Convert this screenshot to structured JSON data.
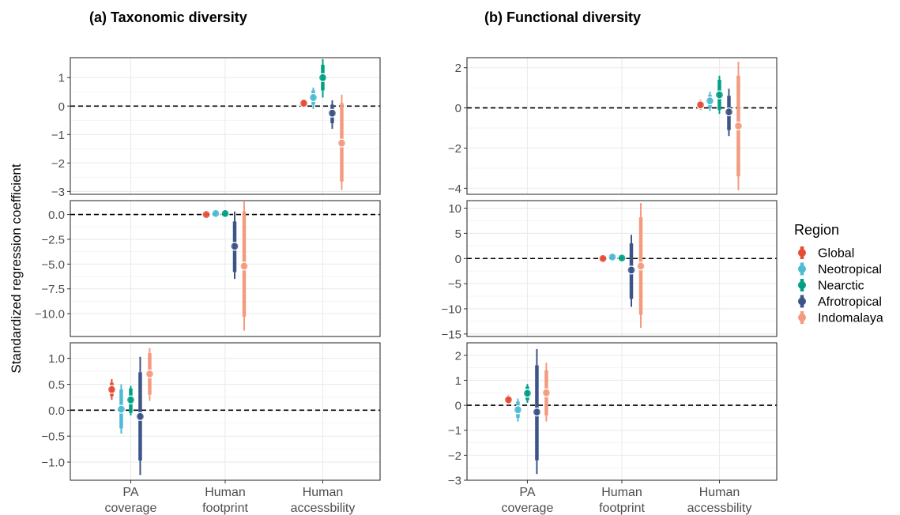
{
  "y_axis_title": "Standardized regression coefficient",
  "legend": {
    "title": "Region",
    "items": [
      {
        "label": "Global",
        "color": "#E64B35"
      },
      {
        "label": "Neotropical",
        "color": "#4DBBD5"
      },
      {
        "label": "Nearctic",
        "color": "#00A087"
      },
      {
        "label": "Afrotropical",
        "color": "#3C5488"
      },
      {
        "label": "Indomalaya",
        "color": "#F39B7F"
      }
    ]
  },
  "categories": [
    "PA\ncoverage",
    "Human\nfootprint",
    "Human\naccessbility"
  ],
  "chart_data": [
    {
      "type": "scatter",
      "title": "(a) Taxonomic diversity",
      "panels": [
        {
          "category": "Human\naccessbility",
          "ylim": [
            -3.1,
            1.7
          ],
          "yticks": [
            -3,
            -2,
            -1,
            0,
            1
          ],
          "ytick_labels": [
            "−3",
            "−2",
            "−1",
            "0",
            "1"
          ],
          "series": [
            {
              "name": "Global",
              "estimate": 0.1,
              "inner": [
                0.0,
                0.2
              ],
              "outer": [
                -0.05,
                0.25
              ]
            },
            {
              "name": "Neotropical",
              "estimate": 0.3,
              "inner": [
                0.05,
                0.55
              ],
              "outer": [
                -0.1,
                0.65
              ]
            },
            {
              "name": "Nearctic",
              "estimate": 1.0,
              "inner": [
                0.55,
                1.45
              ],
              "outer": [
                0.3,
                1.65
              ]
            },
            {
              "name": "Afrotropical",
              "estimate": -0.25,
              "inner": [
                -0.6,
                0.05
              ],
              "outer": [
                -0.8,
                0.2
              ]
            },
            {
              "name": "Indomalaya",
              "estimate": -1.3,
              "inner": [
                -2.65,
                0.1
              ],
              "outer": [
                -2.95,
                0.4
              ]
            }
          ]
        },
        {
          "category": "Human\nfootprint",
          "ylim": [
            -12.3,
            1.4
          ],
          "yticks": [
            -10,
            -7.5,
            -5,
            -2.5,
            0
          ],
          "ytick_labels": [
            "−10.0",
            "−7.5",
            "−5.0",
            "−2.5",
            "0.0"
          ],
          "series": [
            {
              "name": "Global",
              "estimate": 0.0,
              "inner": [
                -0.1,
                0.1
              ],
              "outer": [
                -0.2,
                0.2
              ]
            },
            {
              "name": "Neotropical",
              "estimate": 0.1,
              "inner": [
                -0.1,
                0.3
              ],
              "outer": [
                -0.2,
                0.4
              ]
            },
            {
              "name": "Nearctic",
              "estimate": 0.1,
              "inner": [
                -0.1,
                0.3
              ],
              "outer": [
                -0.2,
                0.4
              ]
            },
            {
              "name": "Afrotropical",
              "estimate": -3.2,
              "inner": [
                -5.8,
                -0.7
              ],
              "outer": [
                -6.5,
                0.3
              ]
            },
            {
              "name": "Indomalaya",
              "estimate": -5.2,
              "inner": [
                -10.3,
                0.3
              ],
              "outer": [
                -11.7,
                1.3
              ]
            }
          ]
        },
        {
          "category": "PA\ncoverage",
          "ylim": [
            -1.35,
            1.3
          ],
          "yticks": [
            -1,
            -0.5,
            0,
            0.5,
            1
          ],
          "ytick_labels": [
            "−1.0",
            "−0.5",
            "0.0",
            "0.5",
            "1.0"
          ],
          "series": [
            {
              "name": "Global",
              "estimate": 0.4,
              "inner": [
                0.27,
                0.53
              ],
              "outer": [
                0.2,
                0.6
              ]
            },
            {
              "name": "Neotropical",
              "estimate": 0.02,
              "inner": [
                -0.35,
                0.4
              ],
              "outer": [
                -0.45,
                0.5
              ]
            },
            {
              "name": "Nearctic",
              "estimate": 0.2,
              "inner": [
                -0.05,
                0.42
              ],
              "outer": [
                -0.1,
                0.47
              ]
            },
            {
              "name": "Afrotropical",
              "estimate": -0.12,
              "inner": [
                -0.97,
                0.73
              ],
              "outer": [
                -1.25,
                1.03
              ]
            },
            {
              "name": "Indomalaya",
              "estimate": 0.7,
              "inner": [
                0.3,
                1.1
              ],
              "outer": [
                0.18,
                1.2
              ]
            }
          ]
        }
      ]
    },
    {
      "type": "scatter",
      "title": "(b) Functional diversity",
      "panels": [
        {
          "category": "Human\naccessbility",
          "ylim": [
            -4.3,
            2.5
          ],
          "yticks": [
            -4,
            -2,
            0,
            2
          ],
          "ytick_labels": [
            "−4",
            "−2",
            "0",
            "2"
          ],
          "series": [
            {
              "name": "Global",
              "estimate": 0.15,
              "inner": [
                0.0,
                0.3
              ],
              "outer": [
                -0.1,
                0.4
              ]
            },
            {
              "name": "Neotropical",
              "estimate": 0.35,
              "inner": [
                0.0,
                0.65
              ],
              "outer": [
                -0.15,
                0.8
              ]
            },
            {
              "name": "Nearctic",
              "estimate": 0.65,
              "inner": [
                -0.1,
                1.4
              ],
              "outer": [
                -0.3,
                1.6
              ]
            },
            {
              "name": "Afrotropical",
              "estimate": -0.2,
              "inner": [
                -1.1,
                0.6
              ],
              "outer": [
                -1.4,
                0.95
              ]
            },
            {
              "name": "Indomalaya",
              "estimate": -0.9,
              "inner": [
                -3.4,
                1.6
              ],
              "outer": [
                -4.1,
                2.3
              ]
            }
          ]
        },
        {
          "category": "Human\nfootprint",
          "ylim": [
            -15.5,
            11.5
          ],
          "yticks": [
            -15,
            -10,
            -5,
            0,
            5,
            10
          ],
          "ytick_labels": [
            "−15",
            "−10",
            "−5",
            "0",
            "5",
            "10"
          ],
          "series": [
            {
              "name": "Global",
              "estimate": 0.0,
              "inner": [
                -0.3,
                0.3
              ],
              "outer": [
                -0.5,
                0.5
              ]
            },
            {
              "name": "Neotropical",
              "estimate": 0.3,
              "inner": [
                0.0,
                0.7
              ],
              "outer": [
                -0.2,
                0.9
              ]
            },
            {
              "name": "Nearctic",
              "estimate": 0.1,
              "inner": [
                -0.2,
                0.4
              ],
              "outer": [
                -0.4,
                0.6
              ]
            },
            {
              "name": "Afrotropical",
              "estimate": -2.3,
              "inner": [
                -8.0,
                3.0
              ],
              "outer": [
                -9.6,
                4.7
              ]
            },
            {
              "name": "Indomalaya",
              "estimate": -1.5,
              "inner": [
                -11.2,
                8.2
              ],
              "outer": [
                -13.8,
                11.0
              ]
            }
          ]
        },
        {
          "category": "PA\ncoverage",
          "ylim": [
            -3.0,
            2.5
          ],
          "yticks": [
            -3,
            -2,
            -1,
            0,
            1,
            2
          ],
          "ytick_labels": [
            "−3",
            "−2",
            "−1",
            "0",
            "1",
            "2"
          ],
          "series": [
            {
              "name": "Global",
              "estimate": 0.22,
              "inner": [
                0.1,
                0.35
              ],
              "outer": [
                0.0,
                0.42
              ]
            },
            {
              "name": "Neotropical",
              "estimate": -0.18,
              "inner": [
                -0.5,
                0.15
              ],
              "outer": [
                -0.65,
                0.27
              ]
            },
            {
              "name": "Nearctic",
              "estimate": 0.48,
              "inner": [
                0.2,
                0.75
              ],
              "outer": [
                0.1,
                0.85
              ]
            },
            {
              "name": "Afrotropical",
              "estimate": -0.27,
              "inner": [
                -2.2,
                1.6
              ],
              "outer": [
                -2.75,
                2.25
              ]
            },
            {
              "name": "Indomalaya",
              "estimate": 0.5,
              "inner": [
                -0.4,
                1.4
              ],
              "outer": [
                -0.65,
                1.7
              ]
            }
          ]
        }
      ]
    }
  ]
}
